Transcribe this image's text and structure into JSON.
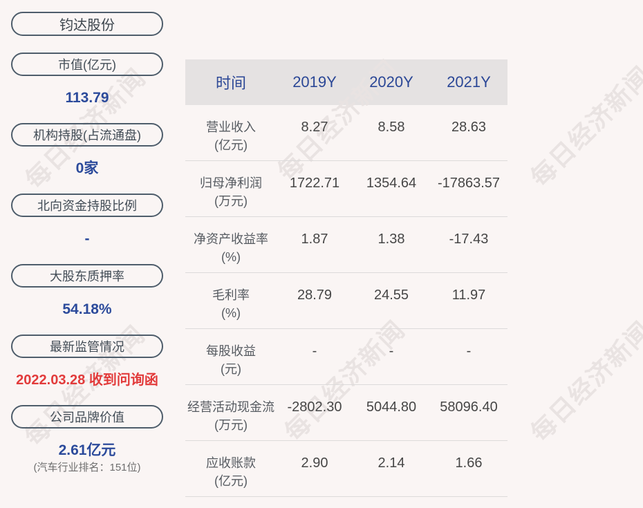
{
  "watermark": {
    "text": "每日经济新闻"
  },
  "colors": {
    "page_bg": "#faf5f4",
    "accent_blue": "#2b4a9b",
    "header_text_blue": "#2b4796",
    "alert_red": "#e23b3b",
    "header_bg": "#e5e2e2",
    "pill_border": "#4e5d6b",
    "watermark_gray": "#e9e3e2"
  },
  "sidebar": {
    "company": "钧达股份",
    "groups": [
      {
        "label": "市值(亿元)",
        "value": "113.79"
      },
      {
        "label": "机构持股(占流通盘)",
        "value": "0家"
      },
      {
        "label": "北向资金持股比例",
        "value": "-"
      },
      {
        "label": "大股东质押率",
        "value": "54.18%"
      },
      {
        "label": "最新监管情况",
        "value": "2022.03.28 收到问询函"
      },
      {
        "label": "公司品牌价值",
        "value": "2.61亿元",
        "note": "(汽车行业排名：151位)"
      }
    ]
  },
  "chart_data": {
    "type": "table",
    "title": "钧达股份",
    "columns": [
      "时间",
      "2019Y",
      "2020Y",
      "2021Y"
    ],
    "rows": [
      {
        "label": "营业收入",
        "unit": "(亿元)",
        "values": [
          "8.27",
          "8.58",
          "28.63"
        ]
      },
      {
        "label": "归母净利润",
        "unit": "(万元)",
        "values": [
          "1722.71",
          "1354.64",
          "-17863.57"
        ]
      },
      {
        "label": "净资产收益率",
        "unit": "(%)",
        "values": [
          "1.87",
          "1.38",
          "-17.43"
        ]
      },
      {
        "label": "毛利率",
        "unit": "(%)",
        "values": [
          "28.79",
          "24.55",
          "11.97"
        ]
      },
      {
        "label": "每股收益",
        "unit": "(元)",
        "values": [
          "-",
          "-",
          "-"
        ]
      },
      {
        "label": "经营活动现金流",
        "unit": "(万元)",
        "values": [
          "-2802.30",
          "5044.80",
          "58096.40"
        ]
      },
      {
        "label": "应收账款",
        "unit": "(亿元)",
        "values": [
          "2.90",
          "2.14",
          "1.66"
        ]
      }
    ]
  }
}
